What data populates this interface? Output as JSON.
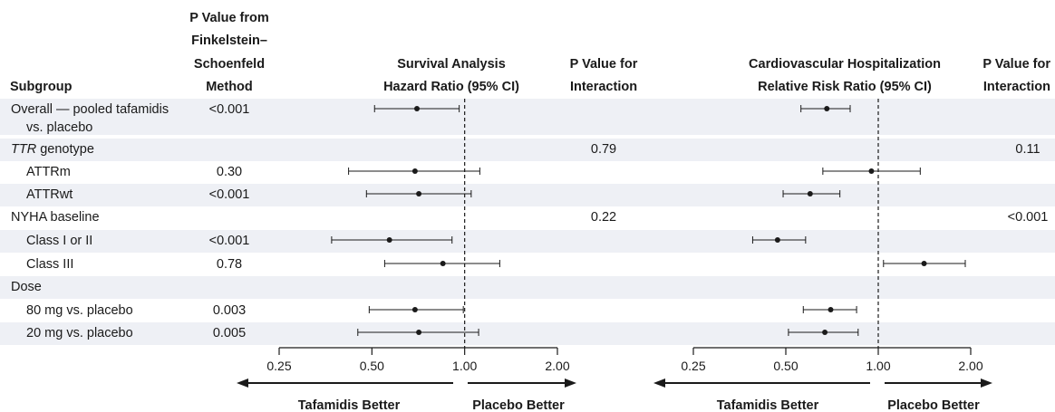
{
  "headers": {
    "subgroup": "Subgroup",
    "fs_pvalue": [
      "P Value from",
      "Finkelstein–",
      "Schoenfeld",
      "Method"
    ],
    "survival": [
      "Survival Analysis",
      "Hazard Ratio (95% CI)"
    ],
    "interaction_survival": [
      "P Value for",
      "Interaction"
    ],
    "cv_hosp": [
      "Cardiovascular Hospitalization",
      "Relative Risk Ratio (95% CI)"
    ],
    "interaction_cv": [
      "P Value for",
      "Interaction"
    ]
  },
  "direction_labels": {
    "left": "Tafamidis Better",
    "right": "Placebo Better"
  },
  "chart_data": [
    {
      "type": "forest",
      "name": "Survival Analysis Hazard Ratio (95% CI)",
      "scale": "log",
      "xlim": [
        0.25,
        2.0
      ],
      "ticks": [
        0.25,
        0.5,
        1.0,
        2.0
      ],
      "tick_labels": [
        "0.25",
        "0.50",
        "1.00",
        "2.00"
      ],
      "reference_line": 1.0,
      "rows": [
        {
          "label": "Overall — pooled tafamidis vs. placebo",
          "estimate": 0.7,
          "lo": 0.51,
          "hi": 0.96
        },
        {
          "label": "TTR genotype",
          "estimate": null,
          "lo": null,
          "hi": null
        },
        {
          "label": "ATTRm",
          "estimate": 0.69,
          "lo": 0.42,
          "hi": 1.12
        },
        {
          "label": "ATTRwt",
          "estimate": 0.71,
          "lo": 0.48,
          "hi": 1.05
        },
        {
          "label": "NYHA baseline",
          "estimate": null,
          "lo": null,
          "hi": null
        },
        {
          "label": "Class I or II",
          "estimate": 0.57,
          "lo": 0.37,
          "hi": 0.91
        },
        {
          "label": "Class III",
          "estimate": 0.85,
          "lo": 0.55,
          "hi": 1.3
        },
        {
          "label": "Dose",
          "estimate": null,
          "lo": null,
          "hi": null
        },
        {
          "label": "80 mg vs. placebo",
          "estimate": 0.69,
          "lo": 0.49,
          "hi": 0.99
        },
        {
          "label": "20 mg vs. placebo",
          "estimate": 0.71,
          "lo": 0.45,
          "hi": 1.11
        }
      ]
    },
    {
      "type": "forest",
      "name": "Cardiovascular Hospitalization Relative Risk Ratio (95% CI)",
      "scale": "log",
      "xlim": [
        0.25,
        2.0
      ],
      "ticks": [
        0.25,
        0.5,
        1.0,
        2.0
      ],
      "tick_labels": [
        "0.25",
        "0.50",
        "1.00",
        "2.00"
      ],
      "reference_line": 1.0,
      "rows": [
        {
          "label": "Overall — pooled tafamidis vs. placebo",
          "estimate": 0.68,
          "lo": 0.56,
          "hi": 0.81
        },
        {
          "label": "TTR genotype",
          "estimate": null,
          "lo": null,
          "hi": null
        },
        {
          "label": "ATTRm",
          "estimate": 0.95,
          "lo": 0.66,
          "hi": 1.37
        },
        {
          "label": "ATTRwt",
          "estimate": 0.6,
          "lo": 0.49,
          "hi": 0.75
        },
        {
          "label": "NYHA baseline",
          "estimate": null,
          "lo": null,
          "hi": null
        },
        {
          "label": "Class I or II",
          "estimate": 0.47,
          "lo": 0.39,
          "hi": 0.58
        },
        {
          "label": "Class III",
          "estimate": 1.41,
          "lo": 1.04,
          "hi": 1.92
        },
        {
          "label": "Dose",
          "estimate": null,
          "lo": null,
          "hi": null
        },
        {
          "label": "80 mg vs. placebo",
          "estimate": 0.7,
          "lo": 0.57,
          "hi": 0.85
        },
        {
          "label": "20 mg vs. placebo",
          "estimate": 0.67,
          "lo": 0.51,
          "hi": 0.86
        }
      ]
    }
  ],
  "rows": [
    {
      "label_lines": [
        "Overall — pooled tafamidis",
        "vs. placebo"
      ],
      "italic_prefix": "",
      "indent": false,
      "shaded": true,
      "fs_p": "<0.001",
      "int_survival": "",
      "int_cv": ""
    },
    {
      "label_lines": [
        " genotype"
      ],
      "italic_prefix": "TTR",
      "indent": false,
      "shaded": true,
      "fs_p": "",
      "int_survival": "0.79",
      "int_cv": "0.11"
    },
    {
      "label_lines": [
        "ATTRm"
      ],
      "italic_prefix": "",
      "indent": true,
      "shaded": false,
      "fs_p": "0.30",
      "int_survival": "",
      "int_cv": ""
    },
    {
      "label_lines": [
        "ATTRwt"
      ],
      "italic_prefix": "",
      "indent": true,
      "shaded": true,
      "fs_p": "<0.001",
      "int_survival": "",
      "int_cv": ""
    },
    {
      "label_lines": [
        "NYHA baseline"
      ],
      "italic_prefix": "",
      "indent": false,
      "shaded": false,
      "fs_p": "",
      "int_survival": "0.22",
      "int_cv": "<0.001"
    },
    {
      "label_lines": [
        "Class I or II"
      ],
      "italic_prefix": "",
      "indent": true,
      "shaded": true,
      "fs_p": "<0.001",
      "int_survival": "",
      "int_cv": ""
    },
    {
      "label_lines": [
        "Class III"
      ],
      "italic_prefix": "",
      "indent": true,
      "shaded": false,
      "fs_p": "0.78",
      "int_survival": "",
      "int_cv": ""
    },
    {
      "label_lines": [
        "Dose"
      ],
      "italic_prefix": "",
      "indent": false,
      "shaded": true,
      "fs_p": "",
      "int_survival": "",
      "int_cv": ""
    },
    {
      "label_lines": [
        "80 mg vs. placebo"
      ],
      "italic_prefix": "",
      "indent": true,
      "shaded": false,
      "fs_p": "0.003",
      "int_survival": "",
      "int_cv": ""
    },
    {
      "label_lines": [
        "20 mg vs. placebo"
      ],
      "italic_prefix": "",
      "indent": true,
      "shaded": true,
      "fs_p": "0.005",
      "int_survival": "",
      "int_cv": ""
    }
  ],
  "colors": {
    "shade": "#eef0f5",
    "ink": "#1a1a1a"
  }
}
